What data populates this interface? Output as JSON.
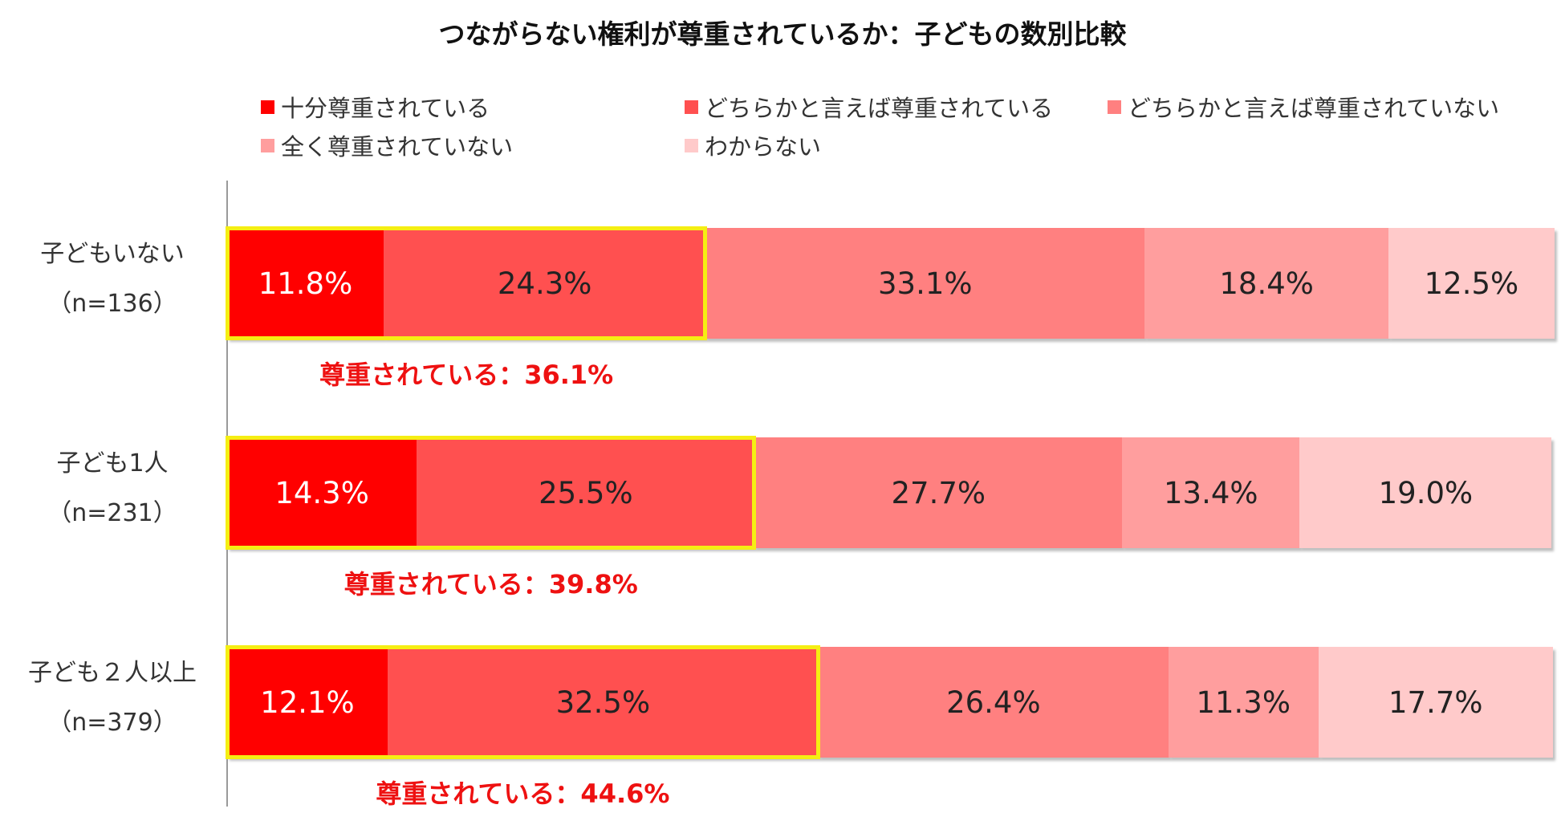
{
  "chart_data": {
    "type": "bar",
    "stacked": true,
    "orientation": "horizontal",
    "title": "つながらない権利が尊重されているか：子どもの数別比較",
    "categories": [
      {
        "name": "子どもいない",
        "n": "（n=136）"
      },
      {
        "name": "子ども1人",
        "n": "（n=231）"
      },
      {
        "name": "子ども２人以上",
        "n": "（n=379）"
      }
    ],
    "series": [
      {
        "name": "十分尊重されている",
        "color": "#ff0000",
        "values": [
          11.8,
          14.3,
          12.1
        ]
      },
      {
        "name": "どちらかと言えば尊重されている",
        "color": "#ff5050",
        "values": [
          24.3,
          25.5,
          32.5
        ]
      },
      {
        "name": "どちらかと言えば尊重されていない",
        "color": "#ff8080",
        "values": [
          33.1,
          27.7,
          26.4
        ]
      },
      {
        "name": "全く尊重されていない",
        "color": "#ff9e9e",
        "values": [
          18.4,
          13.4,
          11.3
        ]
      },
      {
        "name": "わからない",
        "color": "#ffcaca",
        "values": [
          12.5,
          19.0,
          17.7
        ]
      }
    ],
    "value_format": "%",
    "xlim": [
      0,
      100
    ],
    "legend_position": "top",
    "group_annotations": [
      "尊重されている：36.1%",
      "尊重されている：39.8%",
      "尊重されている：44.6%"
    ],
    "highlight_color": "#f5ee13",
    "annotation_color": "#ee1111"
  }
}
